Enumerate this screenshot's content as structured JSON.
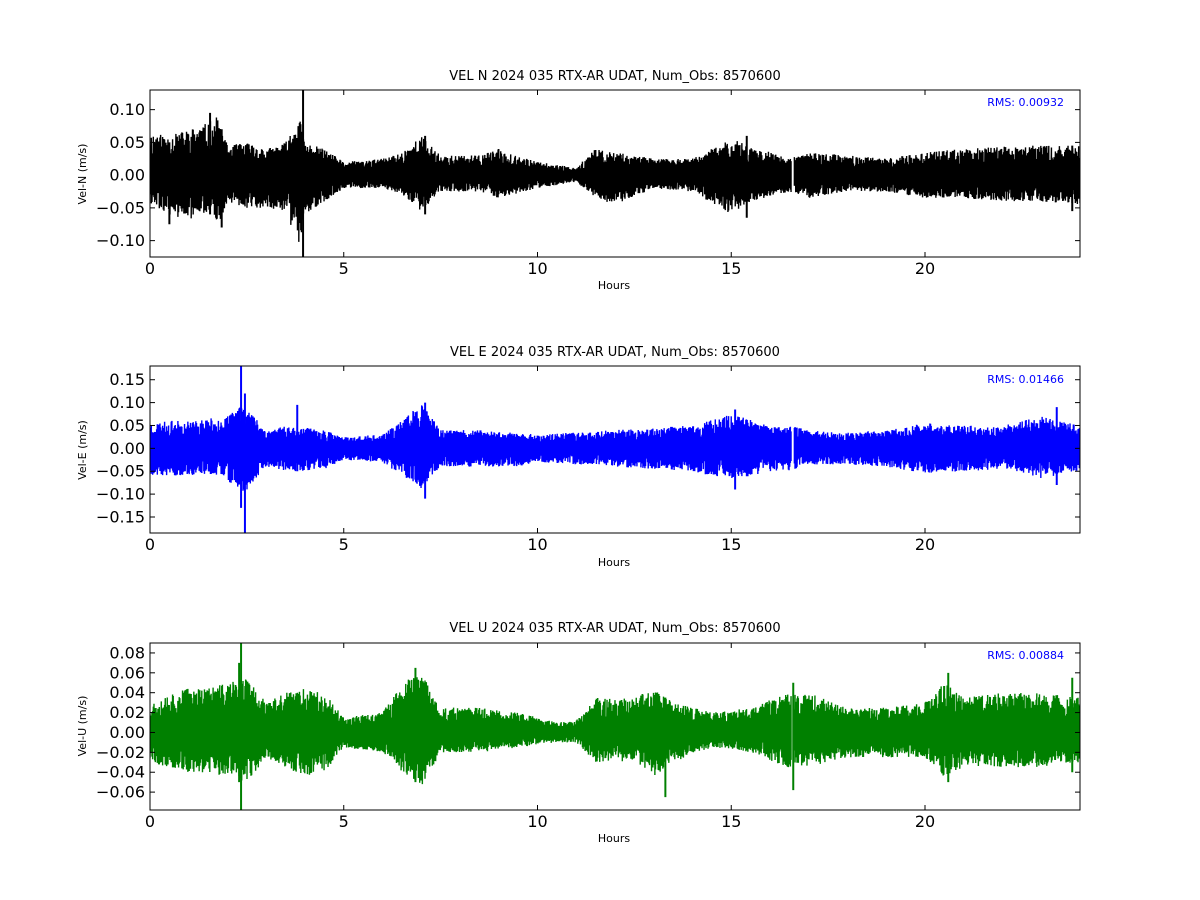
{
  "chart_data": [
    {
      "type": "line",
      "title": "VEL N 2024 035 RTX-AR  UDAT, Num_Obs: 8570600",
      "xlabel": "Hours",
      "ylabel": "Vel-N (m/s)",
      "xlim": [
        0,
        24
      ],
      "ylim": [
        -0.125,
        0.13
      ],
      "xticks": [
        0,
        5,
        10,
        15,
        20
      ],
      "xtick_labels": [
        "0",
        "5",
        "10",
        "15",
        "20"
      ],
      "yticks": [
        0.1,
        0.05,
        0.0,
        -0.05,
        -0.1
      ],
      "ytick_labels": [
        "0.10",
        "0.05",
        "0.00",
        "−0.05",
        "−0.10"
      ],
      "grid": false,
      "annotation": "RMS:  0.00932",
      "annotation_color": "#0000ff",
      "series": [
        {
          "color": "#000000",
          "gaps": [
            [
              16.55,
              16.62
            ]
          ],
          "amplitude_envelope": [
            {
              "hours": 0.0,
              "min": -0.045,
              "max": 0.065
            },
            {
              "hours": 0.5,
              "min": -0.06,
              "max": 0.06
            },
            {
              "hours": 1.0,
              "min": -0.07,
              "max": 0.07
            },
            {
              "hours": 1.5,
              "min": -0.055,
              "max": 0.08
            },
            {
              "hours": 1.75,
              "min": -0.08,
              "max": 0.09
            },
            {
              "hours": 2.0,
              "min": -0.04,
              "max": 0.045
            },
            {
              "hours": 2.5,
              "min": -0.05,
              "max": 0.05
            },
            {
              "hours": 3.0,
              "min": -0.05,
              "max": 0.04
            },
            {
              "hours": 3.5,
              "min": -0.055,
              "max": 0.05
            },
            {
              "hours": 3.85,
              "min": -0.11,
              "max": 0.09
            },
            {
              "hours": 4.0,
              "min": -0.06,
              "max": 0.05
            },
            {
              "hours": 4.5,
              "min": -0.04,
              "max": 0.04
            },
            {
              "hours": 5.0,
              "min": -0.02,
              "max": 0.02
            },
            {
              "hours": 6.0,
              "min": -0.02,
              "max": 0.025
            },
            {
              "hours": 6.5,
              "min": -0.03,
              "max": 0.035
            },
            {
              "hours": 7.0,
              "min": -0.055,
              "max": 0.06
            },
            {
              "hours": 7.5,
              "min": -0.025,
              "max": 0.03
            },
            {
              "hours": 8.5,
              "min": -0.025,
              "max": 0.03
            },
            {
              "hours": 9.0,
              "min": -0.035,
              "max": 0.04
            },
            {
              "hours": 10.0,
              "min": -0.02,
              "max": 0.02
            },
            {
              "hours": 11.0,
              "min": -0.01,
              "max": 0.012
            },
            {
              "hours": 11.5,
              "min": -0.035,
              "max": 0.04
            },
            {
              "hours": 12.0,
              "min": -0.045,
              "max": 0.035
            },
            {
              "hours": 13.0,
              "min": -0.02,
              "max": 0.025
            },
            {
              "hours": 14.0,
              "min": -0.025,
              "max": 0.025
            },
            {
              "hours": 15.0,
              "min": -0.06,
              "max": 0.055
            },
            {
              "hours": 15.5,
              "min": -0.04,
              "max": 0.045
            },
            {
              "hours": 16.5,
              "min": -0.025,
              "max": 0.025
            },
            {
              "hours": 17.0,
              "min": -0.035,
              "max": 0.035
            },
            {
              "hours": 18.0,
              "min": -0.025,
              "max": 0.03
            },
            {
              "hours": 19.0,
              "min": -0.025,
              "max": 0.025
            },
            {
              "hours": 20.0,
              "min": -0.035,
              "max": 0.035
            },
            {
              "hours": 21.0,
              "min": -0.035,
              "max": 0.04
            },
            {
              "hours": 22.0,
              "min": -0.04,
              "max": 0.045
            },
            {
              "hours": 23.0,
              "min": -0.04,
              "max": 0.045
            },
            {
              "hours": 24.0,
              "min": -0.045,
              "max": 0.045
            }
          ],
          "spikes": [
            {
              "hours": 3.95,
              "min": -0.125,
              "max": 0.13
            },
            {
              "hours": 1.55,
              "min": -0.06,
              "max": 0.095
            },
            {
              "hours": 1.85,
              "min": -0.08,
              "max": 0.07
            },
            {
              "hours": 0.5,
              "min": -0.075,
              "max": 0.05
            },
            {
              "hours": 15.4,
              "min": -0.065,
              "max": 0.06
            },
            {
              "hours": 7.1,
              "min": -0.06,
              "max": 0.06
            },
            {
              "hours": 23.8,
              "min": -0.055,
              "max": 0.045
            }
          ]
        }
      ]
    },
    {
      "type": "line",
      "title": "VEL E 2024 035 RTX-AR  UDAT, Num_Obs: 8570600",
      "xlabel": "Hours",
      "ylabel": "Vel-E (m/s)",
      "xlim": [
        0,
        24
      ],
      "ylim": [
        -0.185,
        0.18
      ],
      "xticks": [
        0,
        5,
        10,
        15,
        20
      ],
      "xtick_labels": [
        "0",
        "5",
        "10",
        "15",
        "20"
      ],
      "yticks": [
        0.15,
        0.1,
        0.05,
        0.0,
        -0.05,
        -0.1,
        -0.15
      ],
      "ytick_labels": [
        "0.15",
        "0.10",
        "0.05",
        "0.00",
        "−0.05",
        "−0.10",
        "−0.15"
      ],
      "grid": false,
      "annotation": "RMS:  0.01466",
      "annotation_color": "#0000ff",
      "series": [
        {
          "color": "#0000ff",
          "gaps": [
            [
              16.55,
              16.62
            ]
          ],
          "amplitude_envelope": [
            {
              "hours": 0.0,
              "min": -0.06,
              "max": 0.055
            },
            {
              "hours": 0.5,
              "min": -0.06,
              "max": 0.06
            },
            {
              "hours": 1.0,
              "min": -0.06,
              "max": 0.06
            },
            {
              "hours": 1.5,
              "min": -0.055,
              "max": 0.065
            },
            {
              "hours": 2.0,
              "min": -0.07,
              "max": 0.07
            },
            {
              "hours": 2.4,
              "min": -0.1,
              "max": 0.1
            },
            {
              "hours": 3.0,
              "min": -0.04,
              "max": 0.04
            },
            {
              "hours": 3.5,
              "min": -0.05,
              "max": 0.05
            },
            {
              "hours": 4.0,
              "min": -0.05,
              "max": 0.045
            },
            {
              "hours": 4.5,
              "min": -0.045,
              "max": 0.04
            },
            {
              "hours": 5.0,
              "min": -0.025,
              "max": 0.025
            },
            {
              "hours": 6.0,
              "min": -0.03,
              "max": 0.03
            },
            {
              "hours": 6.5,
              "min": -0.06,
              "max": 0.06
            },
            {
              "hours": 7.0,
              "min": -0.09,
              "max": 0.1
            },
            {
              "hours": 7.5,
              "min": -0.04,
              "max": 0.04
            },
            {
              "hours": 8.5,
              "min": -0.04,
              "max": 0.04
            },
            {
              "hours": 9.5,
              "min": -0.04,
              "max": 0.035
            },
            {
              "hours": 10.0,
              "min": -0.03,
              "max": 0.03
            },
            {
              "hours": 11.0,
              "min": -0.035,
              "max": 0.035
            },
            {
              "hours": 12.0,
              "min": -0.04,
              "max": 0.04
            },
            {
              "hours": 13.0,
              "min": -0.045,
              "max": 0.045
            },
            {
              "hours": 14.0,
              "min": -0.05,
              "max": 0.05
            },
            {
              "hours": 15.0,
              "min": -0.07,
              "max": 0.075
            },
            {
              "hours": 16.0,
              "min": -0.05,
              "max": 0.05
            },
            {
              "hours": 16.5,
              "min": -0.05,
              "max": 0.05
            },
            {
              "hours": 17.0,
              "min": -0.035,
              "max": 0.04
            },
            {
              "hours": 18.0,
              "min": -0.035,
              "max": 0.035
            },
            {
              "hours": 19.0,
              "min": -0.04,
              "max": 0.04
            },
            {
              "hours": 20.0,
              "min": -0.055,
              "max": 0.055
            },
            {
              "hours": 21.0,
              "min": -0.05,
              "max": 0.05
            },
            {
              "hours": 22.0,
              "min": -0.045,
              "max": 0.05
            },
            {
              "hours": 23.0,
              "min": -0.065,
              "max": 0.07
            },
            {
              "hours": 24.0,
              "min": -0.05,
              "max": 0.05
            }
          ],
          "spikes": [
            {
              "hours": 2.35,
              "min": -0.13,
              "max": 0.18
            },
            {
              "hours": 2.45,
              "min": -0.185,
              "max": 0.12
            },
            {
              "hours": 3.8,
              "min": -0.05,
              "max": 0.095
            },
            {
              "hours": 7.1,
              "min": -0.11,
              "max": 0.1
            },
            {
              "hours": 15.1,
              "min": -0.09,
              "max": 0.085
            },
            {
              "hours": 23.4,
              "min": -0.08,
              "max": 0.09
            }
          ]
        }
      ]
    },
    {
      "type": "line",
      "title": "VEL U 2024 035 RTX-AR  UDAT, Num_Obs: 8570600",
      "xlabel": "Hours",
      "ylabel": "Vel-U (m/s)",
      "xlim": [
        0,
        24
      ],
      "ylim": [
        -0.078,
        0.09
      ],
      "xticks": [
        0,
        5,
        10,
        15,
        20
      ],
      "xtick_labels": [
        "0",
        "5",
        "10",
        "15",
        "20"
      ],
      "yticks": [
        0.08,
        0.06,
        0.04,
        0.02,
        0.0,
        -0.02,
        -0.04,
        -0.06
      ],
      "ytick_labels": [
        "0.08",
        "0.06",
        "0.04",
        "0.02",
        "0.00",
        "−0.02",
        "−0.04",
        "−0.06"
      ],
      "grid": false,
      "annotation": "RMS:  0.00884",
      "annotation_color": "#0000ff",
      "series": [
        {
          "color": "#008000",
          "gaps": [
            [
              16.55,
              16.62
            ]
          ],
          "amplitude_envelope": [
            {
              "hours": 0.0,
              "min": -0.03,
              "max": 0.03
            },
            {
              "hours": 0.5,
              "min": -0.035,
              "max": 0.04
            },
            {
              "hours": 1.0,
              "min": -0.04,
              "max": 0.045
            },
            {
              "hours": 1.5,
              "min": -0.04,
              "max": 0.045
            },
            {
              "hours": 2.0,
              "min": -0.045,
              "max": 0.05
            },
            {
              "hours": 2.5,
              "min": -0.05,
              "max": 0.055
            },
            {
              "hours": 3.0,
              "min": -0.025,
              "max": 0.03
            },
            {
              "hours": 3.5,
              "min": -0.035,
              "max": 0.04
            },
            {
              "hours": 4.0,
              "min": -0.045,
              "max": 0.045
            },
            {
              "hours": 4.5,
              "min": -0.04,
              "max": 0.04
            },
            {
              "hours": 5.0,
              "min": -0.015,
              "max": 0.015
            },
            {
              "hours": 6.0,
              "min": -0.02,
              "max": 0.02
            },
            {
              "hours": 6.5,
              "min": -0.04,
              "max": 0.05
            },
            {
              "hours": 7.0,
              "min": -0.055,
              "max": 0.06
            },
            {
              "hours": 7.5,
              "min": -0.02,
              "max": 0.025
            },
            {
              "hours": 8.5,
              "min": -0.02,
              "max": 0.025
            },
            {
              "hours": 9.5,
              "min": -0.015,
              "max": 0.02
            },
            {
              "hours": 10.5,
              "min": -0.01,
              "max": 0.01
            },
            {
              "hours": 11.0,
              "min": -0.01,
              "max": 0.012
            },
            {
              "hours": 11.5,
              "min": -0.03,
              "max": 0.035
            },
            {
              "hours": 12.5,
              "min": -0.03,
              "max": 0.035
            },
            {
              "hours": 13.0,
              "min": -0.045,
              "max": 0.045
            },
            {
              "hours": 13.5,
              "min": -0.03,
              "max": 0.03
            },
            {
              "hours": 14.5,
              "min": -0.015,
              "max": 0.02
            },
            {
              "hours": 15.5,
              "min": -0.02,
              "max": 0.025
            },
            {
              "hours": 16.4,
              "min": -0.035,
              "max": 0.04
            },
            {
              "hours": 17.0,
              "min": -0.035,
              "max": 0.04
            },
            {
              "hours": 18.0,
              "min": -0.025,
              "max": 0.025
            },
            {
              "hours": 19.0,
              "min": -0.025,
              "max": 0.025
            },
            {
              "hours": 20.0,
              "min": -0.025,
              "max": 0.03
            },
            {
              "hours": 20.5,
              "min": -0.045,
              "max": 0.05
            },
            {
              "hours": 21.0,
              "min": -0.035,
              "max": 0.035
            },
            {
              "hours": 22.0,
              "min": -0.035,
              "max": 0.04
            },
            {
              "hours": 23.0,
              "min": -0.035,
              "max": 0.04
            },
            {
              "hours": 24.0,
              "min": -0.03,
              "max": 0.035
            }
          ],
          "spikes": [
            {
              "hours": 2.3,
              "min": -0.05,
              "max": 0.07
            },
            {
              "hours": 2.35,
              "min": -0.078,
              "max": 0.09
            },
            {
              "hours": 6.85,
              "min": -0.05,
              "max": 0.065
            },
            {
              "hours": 13.3,
              "min": -0.065,
              "max": 0.035
            },
            {
              "hours": 16.6,
              "min": -0.058,
              "max": 0.05
            },
            {
              "hours": 20.6,
              "min": -0.05,
              "max": 0.06
            },
            {
              "hours": 23.8,
              "min": -0.04,
              "max": 0.055
            }
          ]
        }
      ]
    }
  ]
}
